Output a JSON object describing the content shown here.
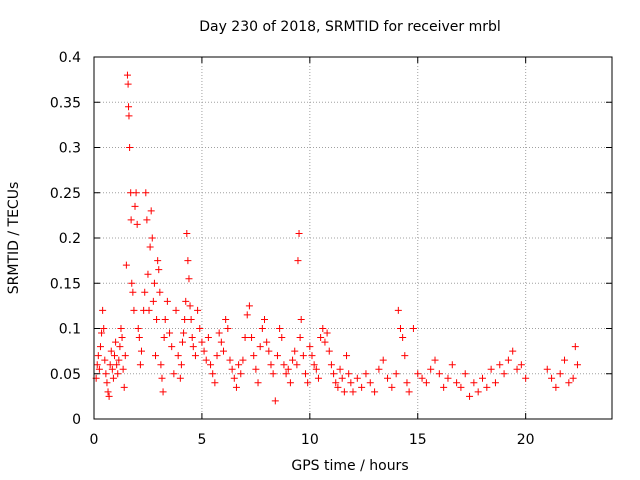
{
  "chart_data": {
    "type": "scatter",
    "title": "Day 230 of 2018, SRMTID for receiver mrbl",
    "xlabel": "GPS time / hours",
    "ylabel": "SRMTID / TECUs",
    "xlim": [
      0,
      24
    ],
    "ylim": [
      0,
      0.4
    ],
    "x_ticks": [
      0,
      5,
      10,
      15,
      20
    ],
    "x_tick_labels": [
      "0",
      "5",
      "10",
      "15",
      "20"
    ],
    "y_ticks": [
      0,
      0.05,
      0.1,
      0.15,
      0.2,
      0.25,
      0.3,
      0.35,
      0.4
    ],
    "y_tick_labels": [
      "0",
      "0.05",
      "0.1",
      "0.15",
      "0.2",
      "0.25",
      "0.3",
      "0.35",
      "0.4"
    ],
    "grid": true,
    "marker": "+",
    "marker_color": "#ff0000",
    "series": [
      {
        "name": "SRMTID",
        "points": [
          [
            0.1,
            0.045
          ],
          [
            0.15,
            0.06
          ],
          [
            0.2,
            0.07
          ],
          [
            0.25,
            0.055
          ],
          [
            0.3,
            0.08
          ],
          [
            0.35,
            0.095
          ],
          [
            0.4,
            0.12
          ],
          [
            0.45,
            0.1
          ],
          [
            0.5,
            0.065
          ],
          [
            0.55,
            0.05
          ],
          [
            0.6,
            0.04
          ],
          [
            0.65,
            0.03
          ],
          [
            0.7,
            0.025
          ],
          [
            0.75,
            0.06
          ],
          [
            0.8,
            0.075
          ],
          [
            0.85,
            0.055
          ],
          [
            0.9,
            0.045
          ],
          [
            0.95,
            0.07
          ],
          [
            1.0,
            0.085
          ],
          [
            1.05,
            0.06
          ],
          [
            1.1,
            0.05
          ],
          [
            1.15,
            0.065
          ],
          [
            1.2,
            0.08
          ],
          [
            1.25,
            0.1
          ],
          [
            1.3,
            0.09
          ],
          [
            1.35,
            0.055
          ],
          [
            1.4,
            0.035
          ],
          [
            1.45,
            0.07
          ],
          [
            1.5,
            0.17
          ],
          [
            1.55,
            0.38
          ],
          [
            1.58,
            0.37
          ],
          [
            1.6,
            0.345
          ],
          [
            1.62,
            0.335
          ],
          [
            1.65,
            0.3
          ],
          [
            1.7,
            0.25
          ],
          [
            1.72,
            0.22
          ],
          [
            1.75,
            0.15
          ],
          [
            1.8,
            0.14
          ],
          [
            1.85,
            0.12
          ],
          [
            1.9,
            0.235
          ],
          [
            1.95,
            0.25
          ],
          [
            2.0,
            0.215
          ],
          [
            2.05,
            0.1
          ],
          [
            2.1,
            0.09
          ],
          [
            2.15,
            0.06
          ],
          [
            2.2,
            0.075
          ],
          [
            2.3,
            0.12
          ],
          [
            2.35,
            0.14
          ],
          [
            2.4,
            0.25
          ],
          [
            2.45,
            0.22
          ],
          [
            2.5,
            0.16
          ],
          [
            2.55,
            0.12
          ],
          [
            2.6,
            0.19
          ],
          [
            2.65,
            0.23
          ],
          [
            2.7,
            0.2
          ],
          [
            2.75,
            0.13
          ],
          [
            2.8,
            0.15
          ],
          [
            2.85,
            0.07
          ],
          [
            2.9,
            0.11
          ],
          [
            2.95,
            0.175
          ],
          [
            3.0,
            0.165
          ],
          [
            3.05,
            0.14
          ],
          [
            3.1,
            0.06
          ],
          [
            3.15,
            0.045
          ],
          [
            3.2,
            0.03
          ],
          [
            3.25,
            0.09
          ],
          [
            3.3,
            0.11
          ],
          [
            3.4,
            0.13
          ],
          [
            3.5,
            0.095
          ],
          [
            3.6,
            0.08
          ],
          [
            3.7,
            0.05
          ],
          [
            3.8,
            0.12
          ],
          [
            3.9,
            0.07
          ],
          [
            4.0,
            0.045
          ],
          [
            4.05,
            0.06
          ],
          [
            4.1,
            0.085
          ],
          [
            4.15,
            0.095
          ],
          [
            4.2,
            0.11
          ],
          [
            4.25,
            0.13
          ],
          [
            4.3,
            0.205
          ],
          [
            4.35,
            0.175
          ],
          [
            4.4,
            0.155
          ],
          [
            4.45,
            0.125
          ],
          [
            4.5,
            0.11
          ],
          [
            4.55,
            0.09
          ],
          [
            4.6,
            0.08
          ],
          [
            4.7,
            0.07
          ],
          [
            4.8,
            0.12
          ],
          [
            4.9,
            0.1
          ],
          [
            5.0,
            0.085
          ],
          [
            5.1,
            0.075
          ],
          [
            5.2,
            0.065
          ],
          [
            5.3,
            0.09
          ],
          [
            5.4,
            0.06
          ],
          [
            5.5,
            0.05
          ],
          [
            5.6,
            0.04
          ],
          [
            5.7,
            0.07
          ],
          [
            5.8,
            0.095
          ],
          [
            5.9,
            0.085
          ],
          [
            6.0,
            0.075
          ],
          [
            6.1,
            0.11
          ],
          [
            6.2,
            0.1
          ],
          [
            6.3,
            0.065
          ],
          [
            6.4,
            0.055
          ],
          [
            6.5,
            0.045
          ],
          [
            6.6,
            0.035
          ],
          [
            6.7,
            0.06
          ],
          [
            6.8,
            0.05
          ],
          [
            6.9,
            0.065
          ],
          [
            7.0,
            0.09
          ],
          [
            7.1,
            0.115
          ],
          [
            7.2,
            0.125
          ],
          [
            7.3,
            0.09
          ],
          [
            7.4,
            0.07
          ],
          [
            7.5,
            0.055
          ],
          [
            7.6,
            0.04
          ],
          [
            7.7,
            0.08
          ],
          [
            7.8,
            0.1
          ],
          [
            7.9,
            0.11
          ],
          [
            8.0,
            0.085
          ],
          [
            8.1,
            0.075
          ],
          [
            8.2,
            0.06
          ],
          [
            8.3,
            0.05
          ],
          [
            8.4,
            0.02
          ],
          [
            8.5,
            0.07
          ],
          [
            8.6,
            0.1
          ],
          [
            8.7,
            0.09
          ],
          [
            8.8,
            0.06
          ],
          [
            8.9,
            0.05
          ],
          [
            9.0,
            0.055
          ],
          [
            9.1,
            0.04
          ],
          [
            9.2,
            0.065
          ],
          [
            9.3,
            0.075
          ],
          [
            9.4,
            0.06
          ],
          [
            9.45,
            0.175
          ],
          [
            9.5,
            0.205
          ],
          [
            9.55,
            0.09
          ],
          [
            9.6,
            0.11
          ],
          [
            9.7,
            0.07
          ],
          [
            9.8,
            0.05
          ],
          [
            9.9,
            0.04
          ],
          [
            10.0,
            0.08
          ],
          [
            10.1,
            0.07
          ],
          [
            10.2,
            0.06
          ],
          [
            10.3,
            0.055
          ],
          [
            10.4,
            0.045
          ],
          [
            10.5,
            0.09
          ],
          [
            10.6,
            0.1
          ],
          [
            10.7,
            0.085
          ],
          [
            10.8,
            0.095
          ],
          [
            10.9,
            0.075
          ],
          [
            11.0,
            0.06
          ],
          [
            11.1,
            0.05
          ],
          [
            11.2,
            0.04
          ],
          [
            11.3,
            0.035
          ],
          [
            11.4,
            0.055
          ],
          [
            11.5,
            0.045
          ],
          [
            11.6,
            0.03
          ],
          [
            11.7,
            0.07
          ],
          [
            11.8,
            0.05
          ],
          [
            11.9,
            0.04
          ],
          [
            12.0,
            0.03
          ],
          [
            12.2,
            0.045
          ],
          [
            12.4,
            0.035
          ],
          [
            12.6,
            0.05
          ],
          [
            12.8,
            0.04
          ],
          [
            13.0,
            0.03
          ],
          [
            13.2,
            0.055
          ],
          [
            13.4,
            0.065
          ],
          [
            13.6,
            0.045
          ],
          [
            13.8,
            0.035
          ],
          [
            14.0,
            0.05
          ],
          [
            14.1,
            0.12
          ],
          [
            14.2,
            0.1
          ],
          [
            14.3,
            0.09
          ],
          [
            14.4,
            0.07
          ],
          [
            14.5,
            0.04
          ],
          [
            14.6,
            0.03
          ],
          [
            14.8,
            0.1
          ],
          [
            15.0,
            0.05
          ],
          [
            15.2,
            0.045
          ],
          [
            15.4,
            0.04
          ],
          [
            15.6,
            0.055
          ],
          [
            15.8,
            0.065
          ],
          [
            16.0,
            0.05
          ],
          [
            16.2,
            0.035
          ],
          [
            16.4,
            0.045
          ],
          [
            16.6,
            0.06
          ],
          [
            16.8,
            0.04
          ],
          [
            17.0,
            0.035
          ],
          [
            17.2,
            0.05
          ],
          [
            17.4,
            0.025
          ],
          [
            17.6,
            0.04
          ],
          [
            17.8,
            0.03
          ],
          [
            18.0,
            0.045
          ],
          [
            18.2,
            0.035
          ],
          [
            18.4,
            0.055
          ],
          [
            18.6,
            0.04
          ],
          [
            18.8,
            0.06
          ],
          [
            19.0,
            0.05
          ],
          [
            19.2,
            0.065
          ],
          [
            19.4,
            0.075
          ],
          [
            19.6,
            0.055
          ],
          [
            19.8,
            0.06
          ],
          [
            20.0,
            0.045
          ],
          [
            21.0,
            0.055
          ],
          [
            21.2,
            0.045
          ],
          [
            21.4,
            0.035
          ],
          [
            21.6,
            0.05
          ],
          [
            21.8,
            0.065
          ],
          [
            22.0,
            0.04
          ],
          [
            22.2,
            0.045
          ],
          [
            22.3,
            0.08
          ],
          [
            22.4,
            0.06
          ]
        ]
      }
    ]
  }
}
